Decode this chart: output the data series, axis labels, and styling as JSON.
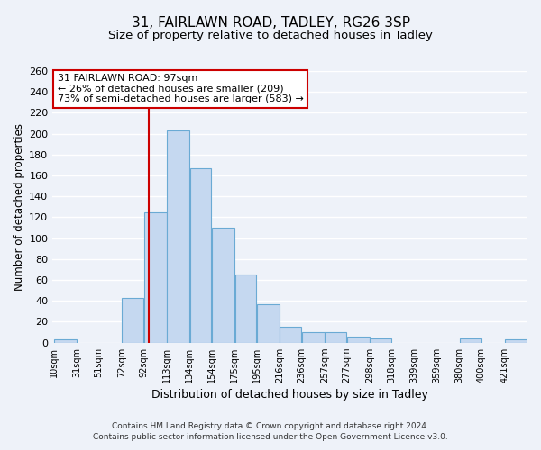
{
  "title1": "31, FAIRLAWN ROAD, TADLEY, RG26 3SP",
  "title2": "Size of property relative to detached houses in Tadley",
  "xlabel": "Distribution of detached houses by size in Tadley",
  "ylabel": "Number of detached properties",
  "bin_labels": [
    "10sqm",
    "31sqm",
    "51sqm",
    "72sqm",
    "92sqm",
    "113sqm",
    "134sqm",
    "154sqm",
    "175sqm",
    "195sqm",
    "216sqm",
    "236sqm",
    "257sqm",
    "277sqm",
    "298sqm",
    "318sqm",
    "339sqm",
    "359sqm",
    "380sqm",
    "400sqm",
    "421sqm"
  ],
  "bin_edges": [
    10,
    31,
    51,
    72,
    92,
    113,
    134,
    154,
    175,
    195,
    216,
    236,
    257,
    277,
    298,
    318,
    339,
    359,
    380,
    400,
    421
  ],
  "bar_heights": [
    3,
    0,
    0,
    43,
    125,
    203,
    167,
    110,
    65,
    37,
    15,
    10,
    10,
    6,
    4,
    0,
    0,
    0,
    4,
    0,
    3
  ],
  "bar_color": "#c5d8f0",
  "bar_edge_color": "#6aaad4",
  "property_value": 97,
  "vline_color": "#cc0000",
  "annotation_line1": "31 FAIRLAWN ROAD: 97sqm",
  "annotation_line2": "← 26% of detached houses are smaller (209)",
  "annotation_line3": "73% of semi-detached houses are larger (583) →",
  "annotation_box_color": "#ffffff",
  "annotation_box_edge": "#cc0000",
  "ylim": [
    0,
    260
  ],
  "yticks": [
    0,
    20,
    40,
    60,
    80,
    100,
    120,
    140,
    160,
    180,
    200,
    220,
    240,
    260
  ],
  "footer1": "Contains HM Land Registry data © Crown copyright and database right 2024.",
  "footer2": "Contains public sector information licensed under the Open Government Licence v3.0.",
  "bg_color": "#eef2f9",
  "grid_color": "#ffffff",
  "title1_fontsize": 11,
  "title2_fontsize": 9.5
}
